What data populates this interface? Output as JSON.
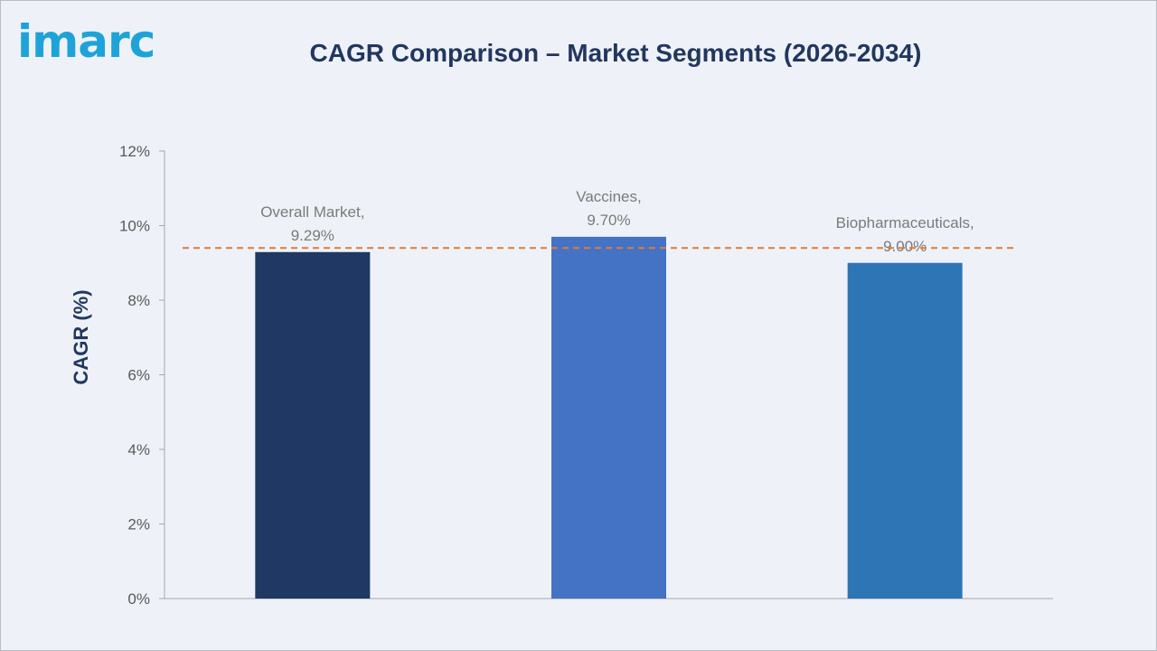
{
  "logo": {
    "text": "imarc"
  },
  "chart_data": {
    "type": "bar",
    "title": "CAGR Comparison – Market Segments (2026-2034)",
    "xlabel": "",
    "ylabel": "CAGR (%)",
    "categories": [
      "Overall Market",
      "Vaccines",
      "Biopharmaceuticals"
    ],
    "values": [
      9.29,
      9.7,
      9.0
    ],
    "data_labels": [
      [
        "Overall Market,",
        "9.29%"
      ],
      [
        "Vaccines,",
        "9.70%"
      ],
      [
        "Biopharmaceuticals,",
        "9.00%"
      ]
    ],
    "bar_colors": [
      "#1f3864",
      "#4472c4",
      "#2e75b6"
    ],
    "ylim": [
      0,
      12
    ],
    "yticks": [
      0,
      2,
      4,
      6,
      8,
      10,
      12
    ],
    "ytick_labels": [
      "0%",
      "2%",
      "4%",
      "6%",
      "8%",
      "10%",
      "12%"
    ],
    "reference_line": {
      "value": 9.4,
      "style": "dashed",
      "color": "#e07b39"
    },
    "grid": false,
    "legend": "none"
  }
}
